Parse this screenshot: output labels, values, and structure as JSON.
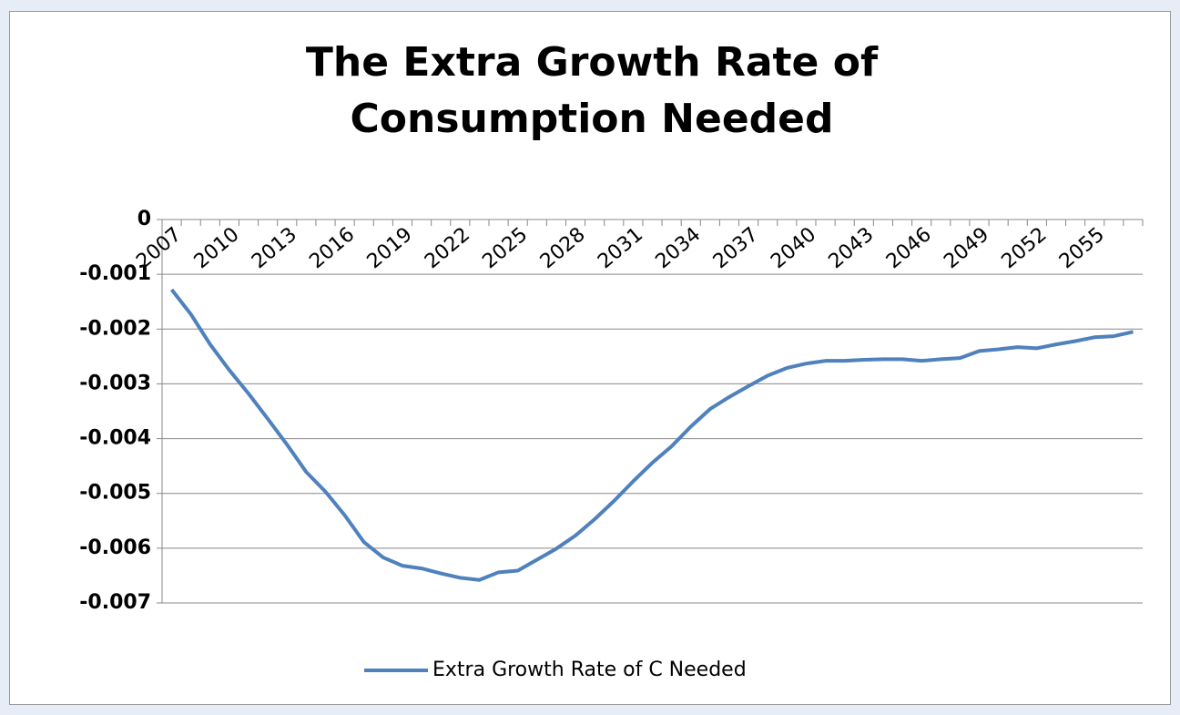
{
  "chart_data": {
    "type": "line",
    "title": "The Extra Growth Rate of Consumption Needed",
    "categories": [
      "2007",
      null,
      null,
      "2010",
      null,
      null,
      "2013",
      null,
      null,
      "2016",
      null,
      null,
      "2019",
      null,
      null,
      "2022",
      null,
      null,
      "2025",
      null,
      null,
      "2028",
      null,
      null,
      "2031",
      null,
      null,
      "2034",
      null,
      null,
      "2037",
      null,
      null,
      "2040",
      null,
      null,
      "2043",
      null,
      null,
      "2046",
      null,
      null,
      "2049",
      null,
      null,
      "2052",
      null,
      null,
      "2055",
      null,
      null
    ],
    "series": [
      {
        "name": "Extra Growth Rate of C Needed",
        "color": "#4f81bd",
        "values": [
          -0.00128,
          -0.00173,
          -0.00228,
          -0.00275,
          -0.00318,
          -0.00364,
          -0.00411,
          -0.00461,
          -0.00497,
          -0.0054,
          -0.00589,
          -0.00617,
          -0.00632,
          -0.00637,
          -0.00646,
          -0.00654,
          -0.00658,
          -0.00644,
          -0.00641,
          -0.00621,
          -0.00601,
          -0.00577,
          -0.00547,
          -0.00514,
          -0.00478,
          -0.00444,
          -0.00414,
          -0.00378,
          -0.00346,
          -0.00324,
          -0.00304,
          -0.00285,
          -0.00271,
          -0.00263,
          -0.00258,
          -0.00258,
          -0.00256,
          -0.00255,
          -0.00255,
          -0.00258,
          -0.00255,
          -0.00253,
          -0.0024,
          -0.00237,
          -0.00233,
          -0.00235,
          -0.00228,
          -0.00222,
          -0.00215,
          -0.00213,
          -0.00205
        ]
      }
    ],
    "ylim": [
      -0.007,
      0
    ],
    "yticks": [
      0,
      -0.001,
      -0.002,
      -0.003,
      -0.004,
      -0.005,
      -0.006,
      -0.007
    ],
    "grid": true,
    "legend": "bottom"
  }
}
